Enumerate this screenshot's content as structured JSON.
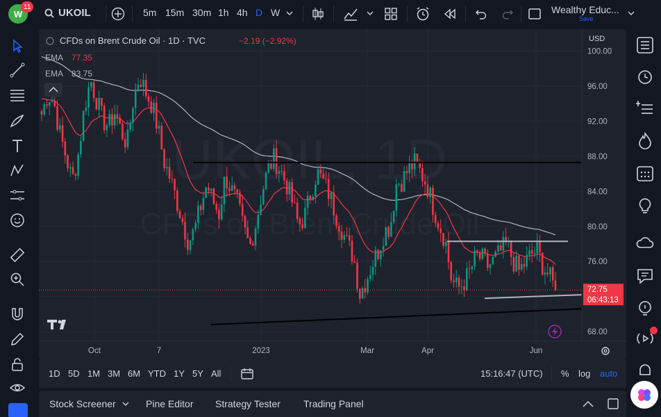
{
  "header": {
    "notif_count": "11",
    "symbol": "UKOIL",
    "intervals": [
      "5m",
      "15m",
      "30m",
      "1h",
      "4h",
      "D",
      "W"
    ],
    "active_interval": "D",
    "account_name": "Wealthy Educ...",
    "save_label": "Save"
  },
  "legend": {
    "title": "CFDs on Brent Crude Oil · 1D · TVC",
    "change": "−2.19 (−2.92%)",
    "ema1_label": "EMA",
    "ema1_value": "77.35",
    "ema2_label": "EMA",
    "ema2_value": "83.75"
  },
  "watermark": {
    "line1": "UKOIL, 1D",
    "line2": "CFDs on Brent Crude Oil"
  },
  "price_axis": {
    "currency": "USD",
    "ticks": [
      "100.00",
      "96.00",
      "92.00",
      "88.00",
      "84.00",
      "80.00",
      "76.00",
      "72.00",
      "68.00"
    ],
    "last_price": "72.75",
    "countdown": "06:43:13"
  },
  "time_axis": {
    "ticks": [
      "Oct",
      "7",
      "2023",
      "Mar",
      "Apr",
      "Jun"
    ]
  },
  "chart_data": {
    "type": "candlestick",
    "title": "CFDs on Brent Crude Oil · 1D · TVC",
    "ylim": [
      66.9,
      102.5
    ],
    "ylabel": "USD",
    "series": [
      {
        "name": "EMA 77.35",
        "color": "#f23645"
      },
      {
        "name": "EMA 83.75",
        "color": "#b2b5be"
      }
    ],
    "close_path": [
      92.8,
      95.1,
      94.2,
      90.5,
      87.9,
      85.2,
      88.3,
      93.7,
      96.7,
      94.4,
      92.1,
      91.5,
      93.1,
      90.8,
      89.4,
      94.6,
      97.2,
      95.3,
      93.9,
      91.2,
      87.4,
      85.5,
      83.1,
      80.7,
      78.2,
      79.6,
      82.3,
      84.8,
      82.9,
      81.4,
      85.7,
      84.2,
      82.6,
      79.8,
      77.6,
      80.3,
      83.9,
      86.5,
      87.8,
      86.4,
      84.9,
      82.7,
      80.1,
      81.2,
      83.8,
      86.2,
      85.1,
      83.7,
      81.6,
      79.8,
      77.9,
      76.6,
      72.3,
      73.8,
      75.7,
      77.2,
      79.4,
      80.1,
      84.9,
      85.3,
      86.6,
      87.2,
      86.1,
      84.7,
      82.3,
      80.2,
      78.4,
      73.9,
      72.9,
      73.6,
      74.8,
      76.6,
      76.3,
      75.4,
      76.2,
      77.1,
      78.0,
      76.2,
      74.9,
      75.8,
      76.8,
      77.3,
      75.4,
      74.3,
      72.75
    ],
    "ema_short": {
      "name": "EMA",
      "last": 77.35
    },
    "ema_long": {
      "name": "EMA",
      "last": 83.75
    },
    "horizontal_lines": [
      87.3,
      78.3
    ],
    "trend_lines": [
      {
        "from": 68.8,
        "to": 70.6
      },
      {
        "from": 71.8,
        "to": 72.2
      }
    ],
    "last_price": 72.75,
    "change": "−2.19 (−2.92%)",
    "grid": true
  },
  "range_bar": {
    "ranges": [
      "1D",
      "5D",
      "1M",
      "3M",
      "6M",
      "YTD",
      "1Y",
      "5Y",
      "All"
    ],
    "clock": "15:16:47 (UTC)",
    "percent_label": "%",
    "log_label": "log",
    "auto_label": "auto"
  },
  "panels": {
    "items": [
      "Stock Screener",
      "Pine Editor",
      "Strategy Tester",
      "Trading Panel"
    ]
  },
  "colors": {
    "up": "#089981",
    "down": "#f23645",
    "background": "#1e222d",
    "accent": "#2962ff"
  }
}
